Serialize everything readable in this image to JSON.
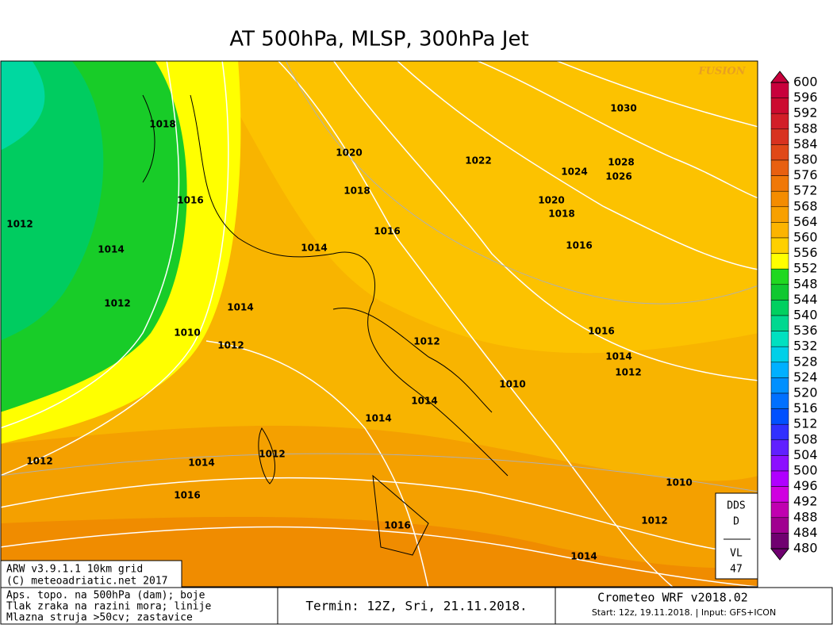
{
  "title": "AT 500hPa, MLSP, 300hPa Jet",
  "watermark": "FUSION",
  "isobar_labels": [
    "1018",
    "1016",
    "1012",
    "1014",
    "1012",
    "1010",
    "1014",
    "1012",
    "1020",
    "1018",
    "1016",
    "1014",
    "1022",
    "1030",
    "1028",
    "1026",
    "1024",
    "1020",
    "1018",
    "1016",
    "1016",
    "1014",
    "1012",
    "1012",
    "1010",
    "1014",
    "1014",
    "1012",
    "1014",
    "1012",
    "1016",
    "1016",
    "1010",
    "1012",
    "1014"
  ],
  "colorbar": {
    "levels": [
      600,
      596,
      592,
      588,
      584,
      580,
      576,
      572,
      568,
      564,
      560,
      556,
      552,
      548,
      544,
      540,
      536,
      532,
      528,
      524,
      520,
      516,
      512,
      508,
      504,
      500,
      496,
      492,
      488,
      484,
      480
    ],
    "colors": [
      "#c8003c",
      "#cc0a30",
      "#d21e28",
      "#d83220",
      "#e04818",
      "#e86010",
      "#f07808",
      "#f48c00",
      "#f8a000",
      "#fcb400",
      "#ffd000",
      "#ffff00",
      "#20d820",
      "#10c830",
      "#00d060",
      "#00d890",
      "#00e0c0",
      "#00d0e8",
      "#00b0ff",
      "#0090ff",
      "#0070ff",
      "#0050ff",
      "#3030ff",
      "#6020ff",
      "#8c10ff",
      "#b000ff",
      "#d000e0",
      "#c000b0",
      "#a00090",
      "#700070"
    ]
  },
  "info_box": {
    "model": "ARW v3.9.1.1 10km grid",
    "copyright": "(C) meteoadriatic.net 2017"
  },
  "legend_lines": [
    "Aps. topo. na 500hPa (dam); boje",
    "Tlak zraka na razini mora; linije",
    "Mlazna struja >50cv; zastavice"
  ],
  "term": "Termin: 12Z, Sri, 21.11.2018.",
  "product": {
    "name": "Crometeo WRF v2018.02",
    "start": "Start: 12z, 19.11.2018. | Input: GFS+ICON"
  },
  "station": [
    "DDS",
    "D",
    "VL",
    "47"
  ]
}
